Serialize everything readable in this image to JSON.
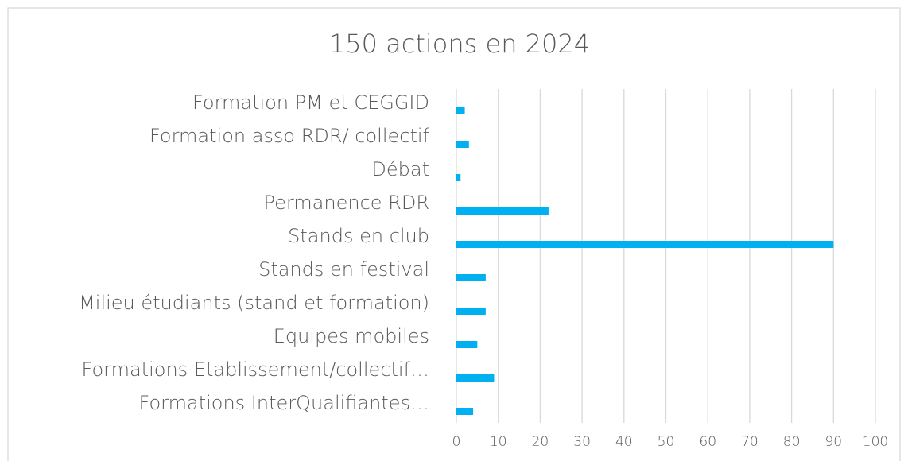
{
  "chart_data": {
    "type": "barh",
    "title": "150 actions en 2024",
    "categories": [
      "Formation PM et CEGGID",
      "Formation asso RDR/ collectif",
      "Débat",
      "Permanence RDR",
      "Stands en club",
      "Stands en festival",
      "Milieu étudiants (stand et formation)",
      "Equipes mobiles",
      "Formations Etablissement/collectif…",
      "Formations InterQualifiantes…"
    ],
    "values": [
      2,
      3,
      1,
      22,
      90,
      7,
      7,
      5,
      9,
      4
    ],
    "color": "#00b0f0",
    "xlim": [
      0,
      100
    ],
    "xticks": [
      0,
      10,
      20,
      30,
      40,
      50,
      60,
      70,
      80,
      90,
      100
    ],
    "grid": true
  }
}
